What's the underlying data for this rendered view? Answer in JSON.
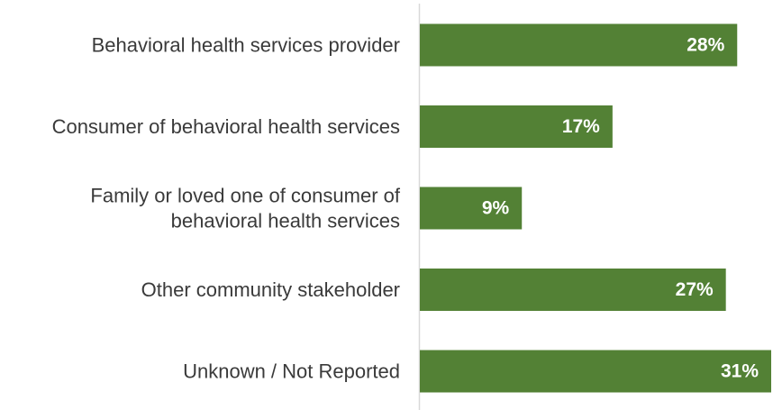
{
  "chart_data": {
    "type": "bar",
    "orientation": "horizontal",
    "categories": [
      [
        "Behavioral health services provider"
      ],
      [
        "Consumer of behavioral health services"
      ],
      [
        "Family or loved one of consumer of",
        "behavioral health services"
      ],
      [
        "Other community stakeholder"
      ],
      [
        "Unknown / Not Reported"
      ]
    ],
    "values": [
      28,
      17,
      9,
      27,
      31
    ],
    "value_labels": [
      "28%",
      "17%",
      "9%",
      "27%",
      "31%"
    ],
    "xlim": [
      0,
      31
    ],
    "bar_color": "#538135",
    "label_color": "#ffffff",
    "grid": false,
    "legend": "none",
    "title": "",
    "xlabel": "",
    "ylabel": ""
  }
}
